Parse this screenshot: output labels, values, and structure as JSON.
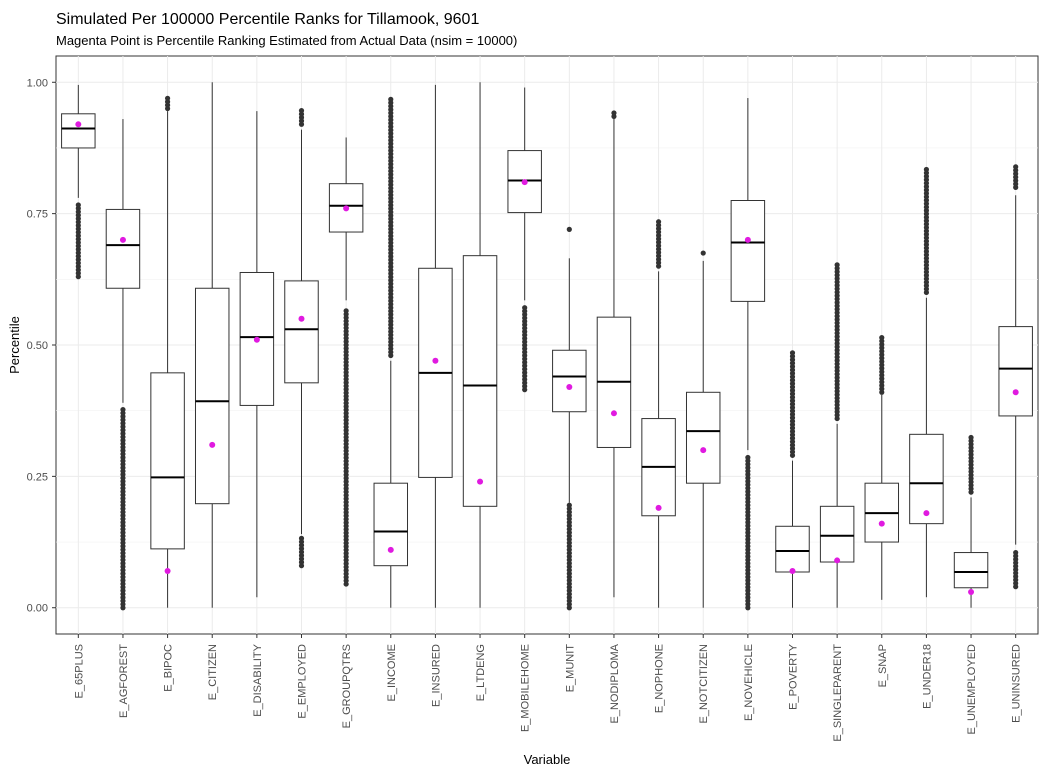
{
  "chart_data": {
    "type": "boxplot",
    "title": "Simulated Per 100000 Percentile Ranks for Tillamook, 9601",
    "subtitle": "Magenta Point is Percentile Ranking Estimated from Actual Data (nsim = 10000)",
    "xlabel": "Variable",
    "ylabel": "Percentile",
    "ylim": [
      -0.05,
      1.05
    ],
    "yticks": [
      0.0,
      0.25,
      0.5,
      0.75,
      1.0
    ],
    "ytick_labels": [
      "0.00",
      "0.25",
      "0.50",
      "0.75",
      "1.00"
    ],
    "grid": true,
    "colors": {
      "box": "#333333",
      "outlier": "#333333",
      "actual_point": "#e01ae0",
      "grid": "#ebebeb"
    },
    "categories": [
      "E_65PLUS",
      "E_AGFOREST",
      "E_BIPOC",
      "E_CITIZEN",
      "E_DISABILITY",
      "E_EMPLOYED",
      "E_GROUPQTRS",
      "E_INCOME",
      "E_INSURED",
      "E_LTDENG",
      "E_MOBILEHOME",
      "E_MUNIT",
      "E_NODIPLOMA",
      "E_NOPHONE",
      "E_NOTCITIZEN",
      "E_NOVEHICLE",
      "E_POVERTY",
      "E_SINGLEPARENT",
      "E_SNAP",
      "E_UNDER18",
      "E_UNEMPLOYED",
      "E_UNINSURED"
    ],
    "boxes": [
      {
        "whisker_low": 0.78,
        "q1": 0.875,
        "median": 0.912,
        "q3": 0.94,
        "whisker_high": 0.995,
        "outliers_low": [
          0.63,
          0.77
        ],
        "outliers_high": [],
        "actual": 0.92
      },
      {
        "whisker_low": 0.39,
        "q1": 0.608,
        "median": 0.69,
        "q3": 0.758,
        "whisker_high": 0.93,
        "outliers_low": [
          0.0,
          0.38
        ],
        "outliers_high": [],
        "actual": 0.7
      },
      {
        "whisker_low": 0.0,
        "q1": 0.112,
        "median": 0.248,
        "q3": 0.447,
        "whisker_high": 0.945,
        "outliers_low": [],
        "outliers_high": [
          0.95,
          0.975
        ],
        "actual": 0.07
      },
      {
        "whisker_low": 0.0,
        "q1": 0.198,
        "median": 0.393,
        "q3": 0.608,
        "whisker_high": 1.0,
        "outliers_low": [],
        "outliers_high": [],
        "actual": 0.31
      },
      {
        "whisker_low": 0.02,
        "q1": 0.385,
        "median": 0.515,
        "q3": 0.638,
        "whisker_high": 0.945,
        "outliers_low": [],
        "outliers_high": [],
        "actual": 0.51
      },
      {
        "whisker_low": 0.14,
        "q1": 0.428,
        "median": 0.53,
        "q3": 0.622,
        "whisker_high": 0.91,
        "outliers_low": [
          0.08,
          0.135
        ],
        "outliers_high": [
          0.92,
          0.95
        ],
        "actual": 0.55
      },
      {
        "whisker_low": 0.585,
        "q1": 0.715,
        "median": 0.765,
        "q3": 0.807,
        "whisker_high": 0.895,
        "outliers_low": [
          0.045,
          0.57
        ],
        "outliers_high": [],
        "actual": 0.76
      },
      {
        "whisker_low": 0.0,
        "q1": 0.08,
        "median": 0.145,
        "q3": 0.237,
        "whisker_high": 0.47,
        "outliers_low": [],
        "outliers_high": [
          0.48,
          0.97
        ],
        "actual": 0.11
      },
      {
        "whisker_low": 0.0,
        "q1": 0.248,
        "median": 0.447,
        "q3": 0.646,
        "whisker_high": 0.995,
        "outliers_low": [],
        "outliers_high": [],
        "actual": 0.47
      },
      {
        "whisker_low": 0.0,
        "q1": 0.193,
        "median": 0.423,
        "q3": 0.67,
        "whisker_high": 1.0,
        "outliers_low": [],
        "outliers_high": [],
        "actual": 0.24
      },
      {
        "whisker_low": 0.585,
        "q1": 0.752,
        "median": 0.813,
        "q3": 0.87,
        "whisker_high": 0.99,
        "outliers_low": [
          0.415,
          0.575
        ],
        "outliers_high": [],
        "actual": 0.81
      },
      {
        "whisker_low": 0.2,
        "q1": 0.373,
        "median": 0.44,
        "q3": 0.49,
        "whisker_high": 0.665,
        "outliers_low": [
          0.0,
          0.195
        ],
        "outliers_high": [
          0.72
        ],
        "actual": 0.42
      },
      {
        "whisker_low": 0.02,
        "q1": 0.305,
        "median": 0.43,
        "q3": 0.553,
        "whisker_high": 0.93,
        "outliers_low": [],
        "outliers_high": [
          0.935,
          0.945
        ],
        "actual": 0.37
      },
      {
        "whisker_low": 0.0,
        "q1": 0.175,
        "median": 0.268,
        "q3": 0.36,
        "whisker_high": 0.64,
        "outliers_low": [],
        "outliers_high": [
          0.65,
          0.735
        ],
        "actual": 0.19
      },
      {
        "whisker_low": 0.0,
        "q1": 0.237,
        "median": 0.336,
        "q3": 0.41,
        "whisker_high": 0.66,
        "outliers_low": [],
        "outliers_high": [
          0.675
        ],
        "actual": 0.3
      },
      {
        "whisker_low": 0.3,
        "q1": 0.583,
        "median": 0.695,
        "q3": 0.775,
        "whisker_high": 0.97,
        "outliers_low": [
          0.0,
          0.29
        ],
        "outliers_high": [],
        "actual": 0.7
      },
      {
        "whisker_low": 0.0,
        "q1": 0.068,
        "median": 0.108,
        "q3": 0.155,
        "whisker_high": 0.28,
        "outliers_low": [],
        "outliers_high": [
          0.29,
          0.49
        ],
        "actual": 0.07
      },
      {
        "whisker_low": 0.0,
        "q1": 0.087,
        "median": 0.137,
        "q3": 0.193,
        "whisker_high": 0.35,
        "outliers_low": [],
        "outliers_high": [
          0.36,
          0.655
        ],
        "actual": 0.09
      },
      {
        "whisker_low": 0.015,
        "q1": 0.125,
        "median": 0.18,
        "q3": 0.237,
        "whisker_high": 0.405,
        "outliers_low": [],
        "outliers_high": [
          0.41,
          0.52
        ],
        "actual": 0.16
      },
      {
        "whisker_low": 0.02,
        "q1": 0.16,
        "median": 0.237,
        "q3": 0.33,
        "whisker_high": 0.59,
        "outliers_low": [],
        "outliers_high": [
          0.6,
          0.84
        ],
        "actual": 0.18
      },
      {
        "whisker_low": 0.0,
        "q1": 0.038,
        "median": 0.068,
        "q3": 0.105,
        "whisker_high": 0.21,
        "outliers_low": [],
        "outliers_high": [
          0.22,
          0.325
        ],
        "actual": 0.03
      },
      {
        "whisker_low": 0.12,
        "q1": 0.365,
        "median": 0.455,
        "q3": 0.535,
        "whisker_high": 0.785,
        "outliers_low": [
          0.04,
          0.11
        ],
        "outliers_high": [
          0.8,
          0.84
        ],
        "actual": 0.41
      }
    ]
  }
}
